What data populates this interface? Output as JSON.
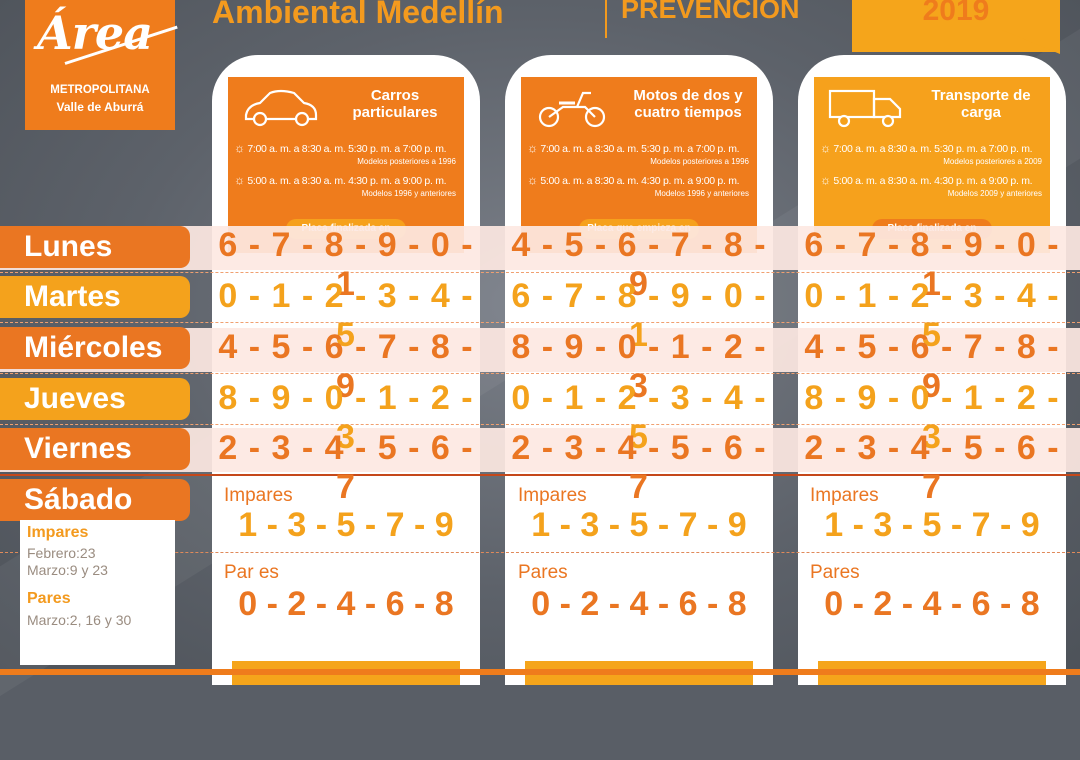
{
  "logo": {
    "word": "Área",
    "sub1": "METROPOLITANA",
    "sub2": "Valle de Aburrá"
  },
  "header": {
    "title": "Ambiental Medellín",
    "prevencion": "PREVENCIÓN",
    "year": "2019"
  },
  "colors": {
    "orange": "#ea7622",
    "yellow": "#f4a21c",
    "background": "#595e66"
  },
  "cards": [
    {
      "vehicle": "Carros particulares",
      "icon": "car-icon",
      "sched1": "7:00 a. m. a 8:30 a. m.   5:30 p. m. a 7:00 p. m.",
      "note1": "Modelos posteriores a 1996",
      "sched2": "5:00 a. m. a 8:30 a. m.   4:30 p. m. a 9:00 p. m.",
      "note2": "Modelos 1996 y anteriores",
      "plate": "Placa finalizada en",
      "days": [
        "6-7-8-9-0-1",
        "0-1-2-3-4-5",
        "4-5-6-7-8-9",
        "8-9-0-1-2-3",
        "2-3-4-5-6-7"
      ],
      "sat_odd_label": "Impares",
      "sat_odd": "1 - 3 - 5 - 7 - 9",
      "sat_even_label": "Par es",
      "sat_even": "0 - 2 - 4 - 6 - 8"
    },
    {
      "vehicle": "Motos de dos y cuatro tiempos",
      "icon": "motorcycle-icon",
      "sched1": "7:00 a. m. a 8:30 a. m.   5:30 p. m. a 7:00 p. m.",
      "note1": "Modelos posteriores a 1996",
      "sched2": "5:00 a. m. a 8:30 a. m.   4:30 p. m. a 9:00 p. m.",
      "note2": "Modelos 1996 y anteriores",
      "plate": "Placa que empieza en",
      "days": [
        "4-5-6-7-8-9",
        "6-7-8-9-0-1",
        "8-9-0-1-2-3",
        "0-1-2-3-4-5",
        "2-3-4-5-6-7"
      ],
      "sat_odd_label": "Impares",
      "sat_odd": "1 - 3 - 5 - 7 - 9",
      "sat_even_label": "Pares",
      "sat_even": "0 - 2 - 4 - 6 - 8"
    },
    {
      "vehicle": "Transporte de carga",
      "icon": "truck-icon",
      "sched1": "7:00 a. m. a 8:30 a. m.   5:30 p. m. a 7:00 p. m.",
      "note1": "Modelos posteriores a 2009",
      "sched2": "5:00 a. m. a 8:30 a. m.   4:30 p. m. a 9:00 p. m.",
      "note2": "Modelos 2009 y anteriores",
      "plate": "Placa finalizada en",
      "days": [
        "6-7-8-9-0-1",
        "0-1-2-3-4-5",
        "4-5-6-7-8-9",
        "8-9-0-1-2-3",
        "2-3-4-5-6-7"
      ],
      "sat_odd_label": "Impares",
      "sat_odd": "1 - 3 - 5 - 7 - 9",
      "sat_even_label": "Pares",
      "sat_even": "0 - 2 - 4 - 6 - 8"
    }
  ],
  "days": [
    "Lunes",
    "Martes",
    "Miércoles",
    "Jueves",
    "Viernes",
    "Sábado"
  ],
  "side_note": {
    "odd_label": "Impares",
    "odd_l1": "Febrero:23",
    "odd_l2": "Marzo:9 y 23",
    "even_label": "Pares",
    "even_l1": "Marzo:2, 16 y 30"
  }
}
